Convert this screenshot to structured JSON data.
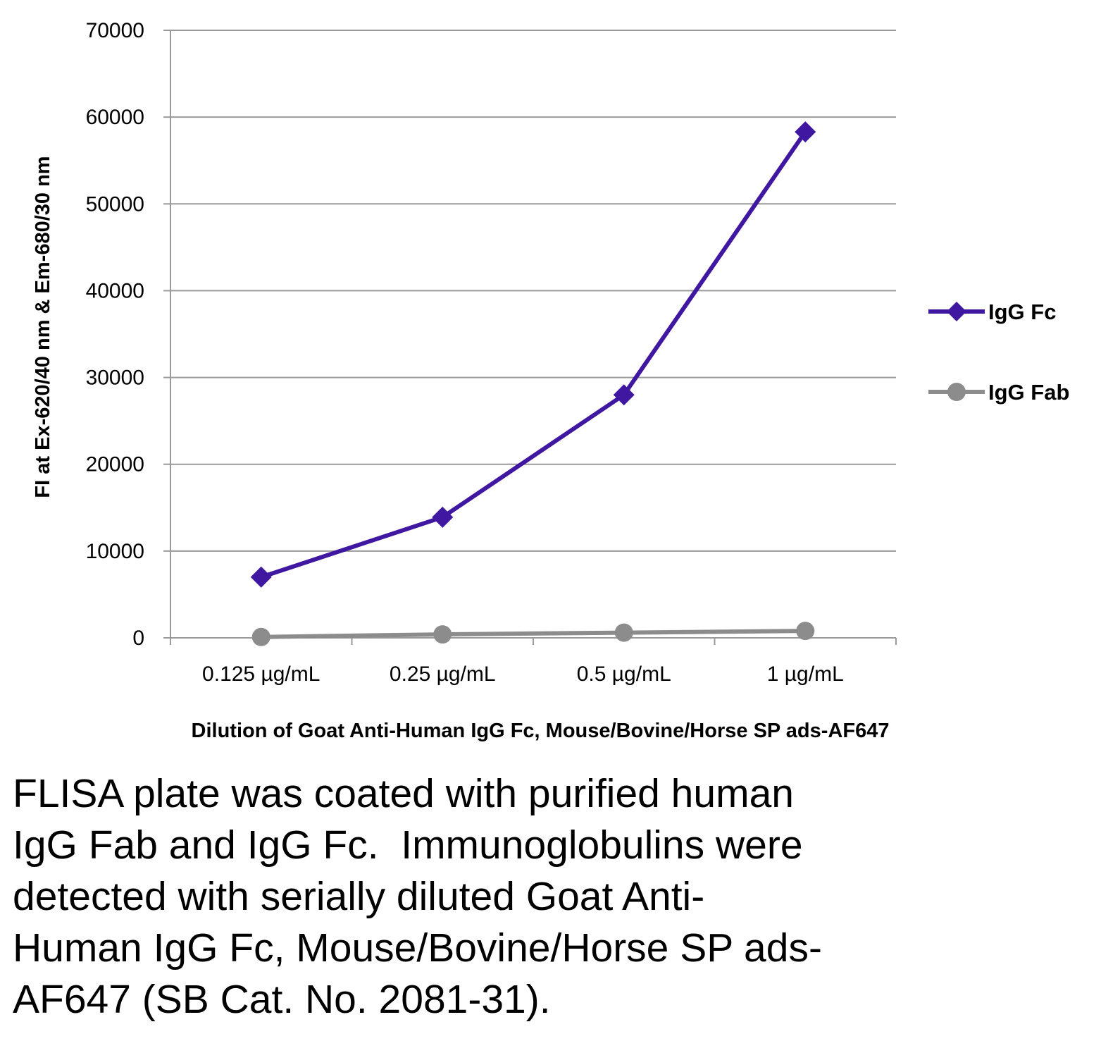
{
  "chart_data": {
    "type": "line",
    "title": "",
    "xlabel": "Dilution of Goat Anti-Human IgG Fc, Mouse/Bovine/Horse SP ads-AF647",
    "ylabel": "FI at Ex-620/40 nm & Em-680/30 nm",
    "categories": [
      "0.125 µg/mL",
      "0.25 µg/mL",
      "0.5 µg/mL",
      "1 µg/mL"
    ],
    "ylim": [
      0,
      70000
    ],
    "yticks": [
      "0",
      "10000",
      "20000",
      "30000",
      "40000",
      "50000",
      "60000",
      "70000"
    ],
    "grid": true,
    "legend_position": "right",
    "series": [
      {
        "name": "IgG Fc",
        "values": [
          7000,
          13900,
          28000,
          58300
        ],
        "color": "#3F17A0",
        "marker": "diamond"
      },
      {
        "name": "IgG Fab",
        "values": [
          100,
          400,
          600,
          800
        ],
        "color": "#8C8C8C",
        "marker": "circle"
      }
    ]
  },
  "caption": "FLISA plate was coated with purified human\nIgG Fab and IgG Fc.  Immunoglobulins were\ndetected with serially diluted Goat Anti-\nHuman IgG Fc, Mouse/Bovine/Horse SP ads-\nAF647 (SB Cat. No. 2081-31)."
}
